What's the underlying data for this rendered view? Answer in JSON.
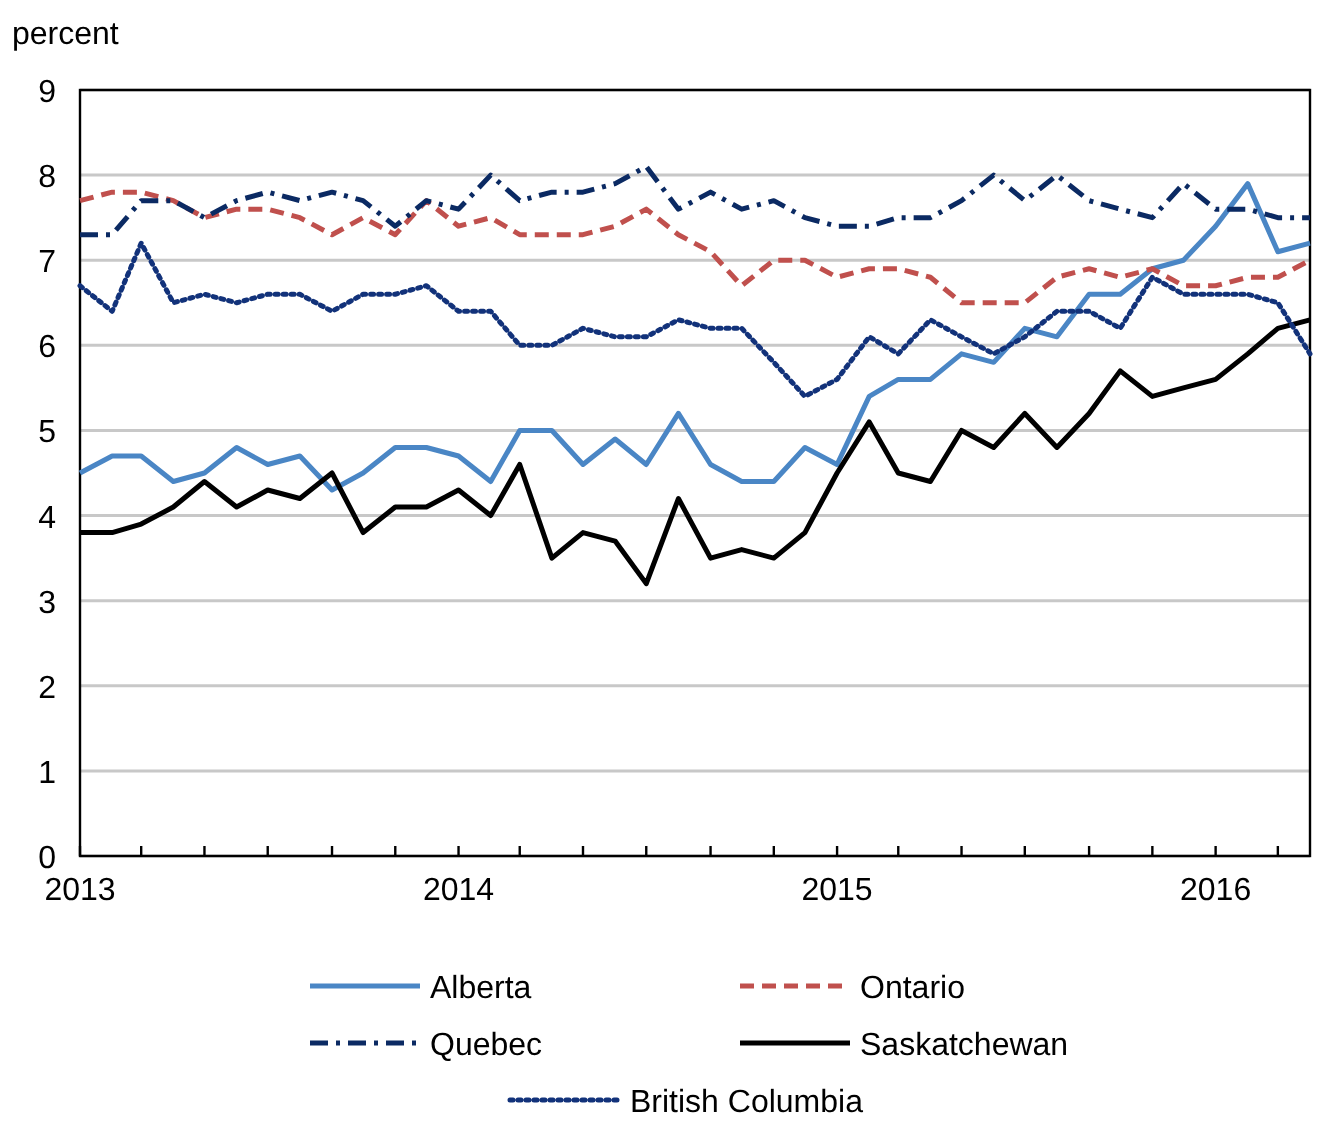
{
  "chart_data": {
    "type": "line",
    "ylabel": "percent",
    "xlim": [
      "2013-01",
      "2016-04"
    ],
    "xticks": [
      {
        "value": "2013-01",
        "label": "2013"
      },
      {
        "value": "2013-03",
        "label": null
      },
      {
        "value": "2013-05",
        "label": null
      },
      {
        "value": "2013-07",
        "label": null
      },
      {
        "value": "2013-09",
        "label": null
      },
      {
        "value": "2013-11",
        "label": null
      },
      {
        "value": "2014-01",
        "label": "2014"
      },
      {
        "value": "2014-03",
        "label": null
      },
      {
        "value": "2014-05",
        "label": null
      },
      {
        "value": "2014-07",
        "label": null
      },
      {
        "value": "2014-09",
        "label": null
      },
      {
        "value": "2014-11",
        "label": null
      },
      {
        "value": "2015-01",
        "label": "2015"
      },
      {
        "value": "2015-03",
        "label": null
      },
      {
        "value": "2015-05",
        "label": null
      },
      {
        "value": "2015-07",
        "label": null
      },
      {
        "value": "2015-09",
        "label": null
      },
      {
        "value": "2015-11",
        "label": null
      },
      {
        "value": "2016-01",
        "label": "2016"
      },
      {
        "value": "2016-03",
        "label": null
      }
    ],
    "ylim": [
      0,
      9
    ],
    "yticks": [
      0,
      1,
      2,
      3,
      4,
      5,
      6,
      7,
      8,
      9
    ],
    "grid": "y",
    "legend": "bottom",
    "marker": "none",
    "x": [
      "2013-01",
      "2013-02",
      "2013-03",
      "2013-04",
      "2013-05",
      "2013-06",
      "2013-07",
      "2013-08",
      "2013-09",
      "2013-10",
      "2013-11",
      "2013-12",
      "2014-01",
      "2014-02",
      "2014-03",
      "2014-04",
      "2014-05",
      "2014-06",
      "2014-07",
      "2014-08",
      "2014-09",
      "2014-10",
      "2014-11",
      "2014-12",
      "2015-01",
      "2015-02",
      "2015-03",
      "2015-04",
      "2015-05",
      "2015-06",
      "2015-07",
      "2015-08",
      "2015-09",
      "2015-10",
      "2015-11",
      "2015-12",
      "2016-01",
      "2016-02",
      "2016-03",
      "2016-04"
    ],
    "series": [
      {
        "name": "Alberta",
        "color": "#4a86c5",
        "line_style": "solid",
        "values": [
          4.5,
          4.7,
          4.7,
          4.4,
          4.5,
          4.8,
          4.6,
          4.7,
          4.3,
          4.5,
          4.8,
          4.8,
          4.7,
          4.4,
          5.0,
          5.0,
          4.6,
          4.9,
          4.6,
          5.2,
          4.6,
          4.4,
          4.4,
          4.8,
          4.6,
          5.4,
          5.6,
          5.6,
          5.9,
          5.8,
          6.2,
          6.1,
          6.6,
          6.6,
          6.9,
          7.0,
          7.4,
          7.9,
          7.1,
          7.2
        ]
      },
      {
        "name": "Ontario",
        "color": "#c0504d",
        "line_style": "dashed",
        "values": [
          7.7,
          7.8,
          7.8,
          7.7,
          7.5,
          7.6,
          7.6,
          7.5,
          7.3,
          7.5,
          7.3,
          7.7,
          7.4,
          7.5,
          7.3,
          7.3,
          7.3,
          7.4,
          7.6,
          7.3,
          7.1,
          6.7,
          7.0,
          7.0,
          6.8,
          6.9,
          6.9,
          6.8,
          6.5,
          6.5,
          6.5,
          6.8,
          6.9,
          6.8,
          6.9,
          6.7,
          6.7,
          6.8,
          6.8,
          7.0
        ]
      },
      {
        "name": "Quebec",
        "color": "#0b2a63",
        "line_style": "dashdot",
        "values": [
          7.3,
          7.3,
          7.7,
          7.7,
          7.5,
          7.7,
          7.8,
          7.7,
          7.8,
          7.7,
          7.4,
          7.7,
          7.6,
          8.0,
          7.7,
          7.8,
          7.8,
          7.9,
          8.1,
          7.6,
          7.8,
          7.6,
          7.7,
          7.5,
          7.4,
          7.4,
          7.5,
          7.5,
          7.7,
          8.0,
          7.7,
          8.0,
          7.7,
          7.6,
          7.5,
          7.9,
          7.6,
          7.6,
          7.5,
          7.5
        ]
      },
      {
        "name": "Saskatchewan",
        "color": "#000000",
        "line_style": "solid",
        "values": [
          3.8,
          3.8,
          3.9,
          4.1,
          4.4,
          4.1,
          4.3,
          4.2,
          4.5,
          3.8,
          4.1,
          4.1,
          4.3,
          4.0,
          4.6,
          3.5,
          3.8,
          3.7,
          3.2,
          4.2,
          3.5,
          3.6,
          3.5,
          3.8,
          4.5,
          5.1,
          4.5,
          4.4,
          5.0,
          4.8,
          5.2,
          4.8,
          5.2,
          5.7,
          5.4,
          5.5,
          5.6,
          5.9,
          6.2,
          6.3
        ]
      },
      {
        "name": "British Columbia",
        "color": "#12327a",
        "line_style": "dotted",
        "values": [
          6.7,
          6.4,
          7.2,
          6.5,
          6.6,
          6.5,
          6.6,
          6.6,
          6.4,
          6.6,
          6.6,
          6.7,
          6.4,
          6.4,
          6.0,
          6.0,
          6.2,
          6.1,
          6.1,
          6.3,
          6.2,
          6.2,
          5.8,
          5.4,
          5.6,
          6.1,
          5.9,
          6.3,
          6.1,
          5.9,
          6.1,
          6.4,
          6.4,
          6.2,
          6.8,
          6.6,
          6.6,
          6.6,
          6.5,
          5.9
        ]
      }
    ]
  }
}
